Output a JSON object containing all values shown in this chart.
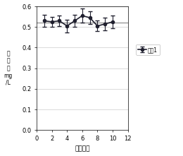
{
  "x": [
    1,
    2,
    3,
    4,
    5,
    6,
    7,
    8,
    9,
    10
  ],
  "y": [
    0.53,
    0.525,
    0.53,
    0.505,
    0.53,
    0.555,
    0.545,
    0.505,
    0.515,
    0.525
  ],
  "yerr": [
    0.03,
    0.025,
    0.025,
    0.03,
    0.03,
    0.035,
    0.03,
    0.025,
    0.03,
    0.03
  ],
  "hline_y": 0.521,
  "xlim": [
    0,
    12
  ],
  "ylim": [
    0,
    0.6
  ],
  "xticks": [
    0,
    2,
    4,
    6,
    8,
    10,
    12
  ],
  "yticks": [
    0,
    0.1,
    0.2,
    0.3,
    0.4,
    0.5,
    0.6
  ],
  "xlabel": "数据编号",
  "ylabel_lines": [
    "浓",
    "度",
    "値",
    "mg",
    "/L"
  ],
  "legend_label": "系列1",
  "line_color": "#1f1f2e",
  "hline_color": "#999999",
  "grid_color": "#cccccc",
  "marker": "o",
  "markersize": 3,
  "linewidth": 1.2,
  "capsize": 2
}
